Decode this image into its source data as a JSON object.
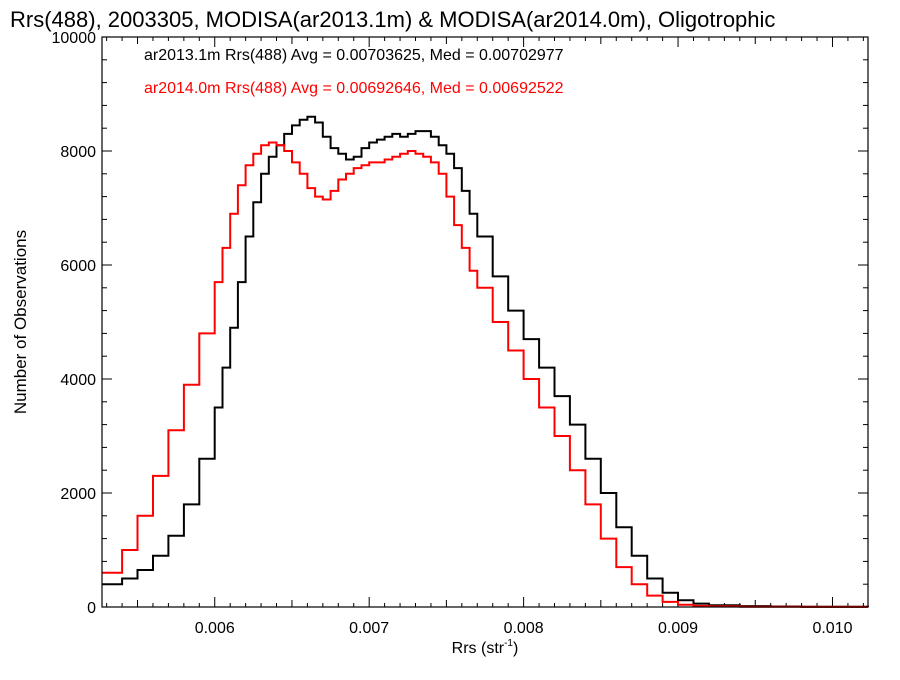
{
  "chart_data": {
    "type": "line",
    "step": true,
    "title": "Rrs(488), 2003305, MODISA(ar2013.1m) & MODISA(ar2014.0m), Oligotrophic",
    "xlabel": "Rrs (str",
    "xlabel_sup": "-1",
    "xlabel_close": ")",
    "ylabel": "Number of Observations",
    "xlim": [
      0.00527,
      0.01023
    ],
    "ylim": [
      0,
      10000
    ],
    "x_ticks": [
      0.006,
      0.007,
      0.008,
      0.009,
      0.01
    ],
    "x_tick_labels": [
      "0.006",
      "0.007",
      "0.008",
      "0.009",
      "0.010"
    ],
    "x_minor_ticks": [
      0.0055,
      0.006,
      0.0065,
      0.007,
      0.0075,
      0.008,
      0.0085,
      0.009,
      0.0095,
      0.01
    ],
    "y_ticks": [
      0,
      2000,
      4000,
      6000,
      8000,
      10000
    ],
    "y_tick_labels": [
      "0",
      "2000",
      "4000",
      "6000",
      "8000",
      "10000"
    ],
    "grid": false,
    "legend_placement": "top-left",
    "legend": [
      {
        "text": "ar2013.1m Rrs(488) Avg = 0.00703625, Med = 0.00702977",
        "color": "#000000"
      },
      {
        "text": "ar2014.0m Rrs(488) Avg = 0.00692646, Med = 0.00692522",
        "color": "#ff0000"
      }
    ],
    "series": [
      {
        "name": "ar2013.1m",
        "color": "#000000",
        "x": [
          0.00527,
          0.0054,
          0.0055,
          0.0056,
          0.0057,
          0.0058,
          0.0059,
          0.006,
          0.00605,
          0.0061,
          0.00615,
          0.0062,
          0.00625,
          0.0063,
          0.00635,
          0.0064,
          0.00645,
          0.0065,
          0.00655,
          0.0066,
          0.00665,
          0.0067,
          0.00675,
          0.0068,
          0.00685,
          0.0069,
          0.00695,
          0.007,
          0.00705,
          0.0071,
          0.00715,
          0.0072,
          0.00725,
          0.0073,
          0.00735,
          0.0074,
          0.00745,
          0.0075,
          0.00755,
          0.0076,
          0.00765,
          0.0077,
          0.0078,
          0.0079,
          0.008,
          0.0081,
          0.0082,
          0.0083,
          0.0084,
          0.0085,
          0.0086,
          0.0087,
          0.0088,
          0.0089,
          0.009,
          0.0091,
          0.0092,
          0.0094,
          0.0096,
          0.0098,
          0.01023
        ],
        "values": [
          400,
          500,
          650,
          900,
          1250,
          1800,
          2600,
          3500,
          4200,
          4900,
          5700,
          6500,
          7100,
          7600,
          7900,
          8100,
          8300,
          8450,
          8550,
          8600,
          8500,
          8250,
          8050,
          7950,
          7850,
          7900,
          8050,
          8150,
          8200,
          8250,
          8300,
          8250,
          8300,
          8350,
          8350,
          8250,
          8100,
          7950,
          7700,
          7300,
          6900,
          6500,
          5800,
          5200,
          4700,
          4200,
          3700,
          3200,
          2600,
          2000,
          1400,
          900,
          500,
          250,
          120,
          60,
          30,
          15,
          8,
          5,
          3
        ]
      },
      {
        "name": "ar2014.0m",
        "color": "#ff0000",
        "x": [
          0.00527,
          0.0054,
          0.0055,
          0.0056,
          0.0057,
          0.0058,
          0.0059,
          0.006,
          0.00605,
          0.0061,
          0.00615,
          0.0062,
          0.00625,
          0.0063,
          0.00635,
          0.0064,
          0.00645,
          0.0065,
          0.00655,
          0.0066,
          0.00665,
          0.0067,
          0.00675,
          0.0068,
          0.00685,
          0.0069,
          0.00695,
          0.007,
          0.00705,
          0.0071,
          0.00715,
          0.0072,
          0.00725,
          0.0073,
          0.00735,
          0.0074,
          0.00745,
          0.0075,
          0.00755,
          0.0076,
          0.00765,
          0.0077,
          0.0078,
          0.0079,
          0.008,
          0.0081,
          0.0082,
          0.0083,
          0.0084,
          0.0085,
          0.0086,
          0.0087,
          0.0088,
          0.0089,
          0.009,
          0.0091,
          0.0092,
          0.0094,
          0.0096,
          0.0098,
          0.01023
        ],
        "values": [
          600,
          1000,
          1600,
          2300,
          3100,
          3900,
          4800,
          5700,
          6300,
          6900,
          7400,
          7750,
          7950,
          8100,
          8150,
          8100,
          8000,
          7800,
          7600,
          7350,
          7200,
          7150,
          7300,
          7500,
          7600,
          7700,
          7750,
          7800,
          7800,
          7850,
          7900,
          7950,
          8000,
          7950,
          7900,
          7800,
          7600,
          7200,
          6700,
          6300,
          5900,
          5600,
          5000,
          4500,
          4000,
          3500,
          3000,
          2400,
          1800,
          1200,
          700,
          400,
          200,
          90,
          40,
          20,
          10,
          5,
          3,
          2,
          1
        ]
      }
    ]
  }
}
